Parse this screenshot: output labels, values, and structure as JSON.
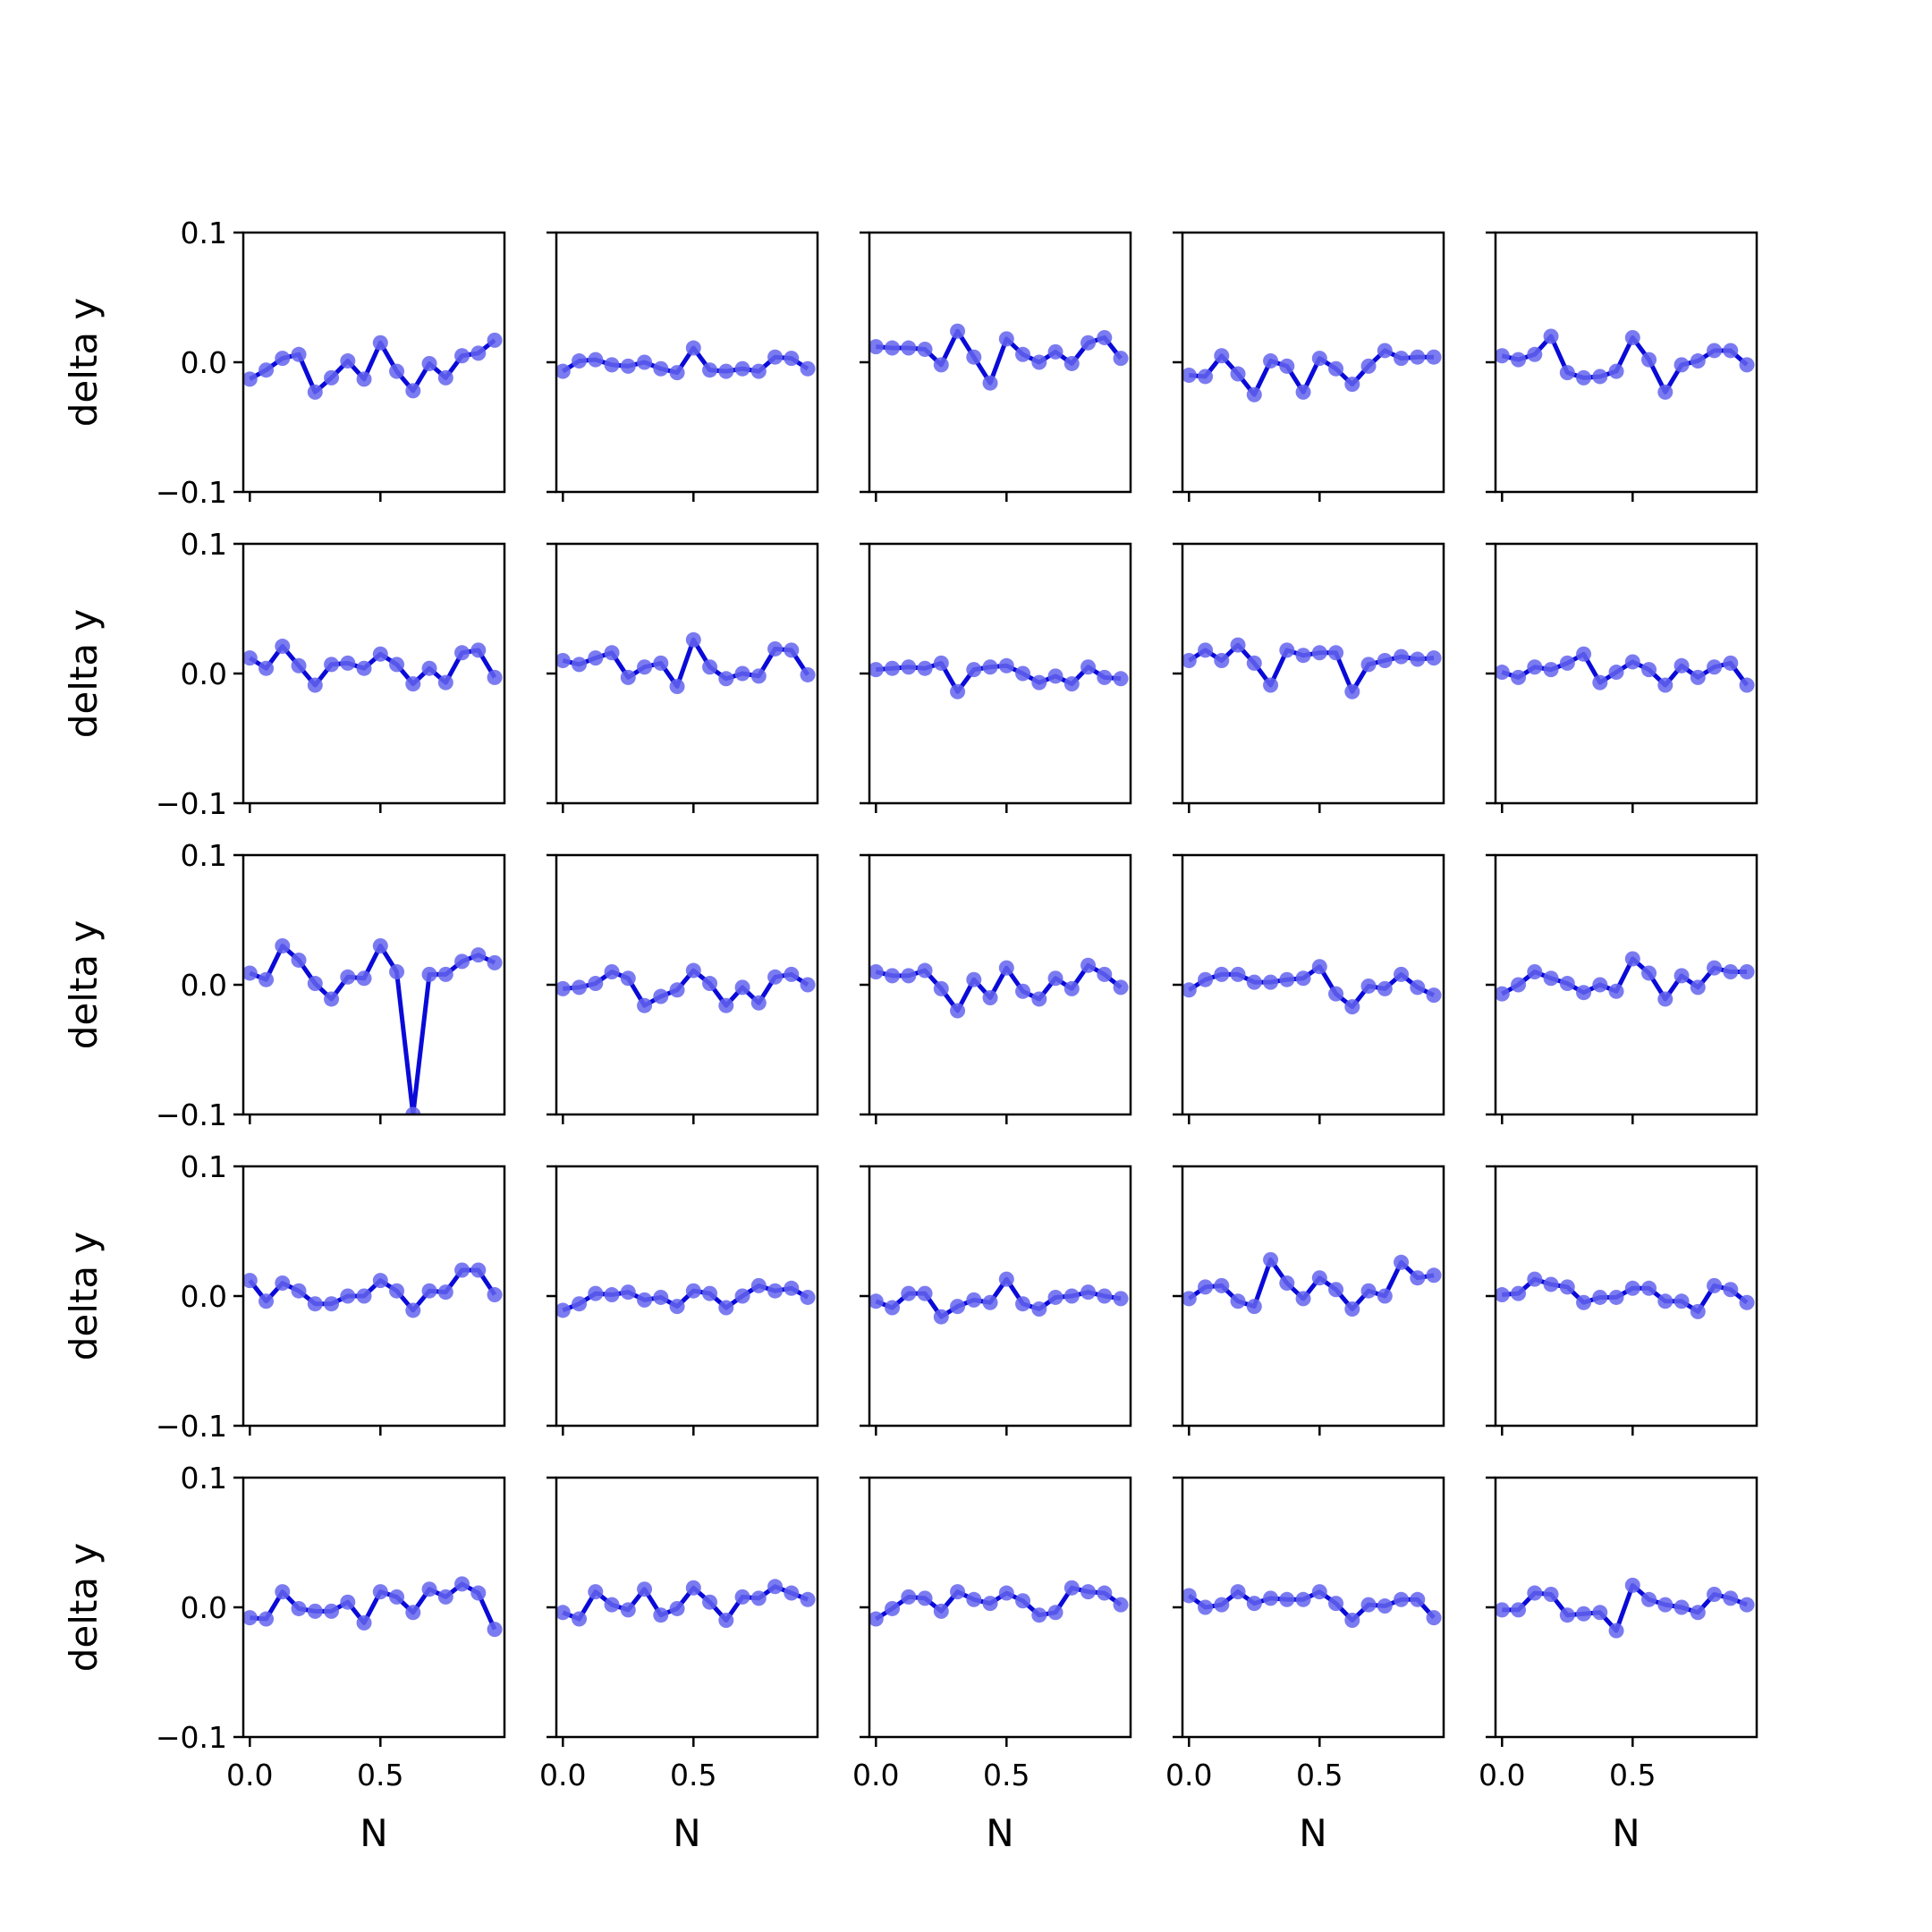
{
  "figure": {
    "rows": 5,
    "cols": 5,
    "line_color": "#0a0ad8",
    "marker_color": "#6464ee",
    "xlabel": "N",
    "ylabel": "delta y"
  },
  "chart_data": {
    "type": "line",
    "layout": "5x5 grid of small multiples, shared x and y axes",
    "xlabel": "N",
    "ylabel": "delta y",
    "xlim": [
      -0.025,
      0.975
    ],
    "ylim": [
      -0.1,
      0.1
    ],
    "xticks": [
      0.0,
      0.5
    ],
    "xtick_labels": [
      "0.0",
      "0.5"
    ],
    "yticks": [
      -0.1,
      0.0,
      0.1
    ],
    "ytick_labels": [
      "−0.1",
      "0.0",
      "0.1"
    ],
    "x": [
      0.0,
      0.0625,
      0.125,
      0.1875,
      0.25,
      0.3125,
      0.375,
      0.4375,
      0.5,
      0.5625,
      0.625,
      0.6875,
      0.75,
      0.8125,
      0.875,
      0.9375
    ],
    "grid": false,
    "legend": false,
    "panels": [
      {
        "row": 0,
        "col": 0,
        "values": [
          -0.013,
          -0.006,
          0.003,
          0.006,
          -0.023,
          -0.012,
          0.001,
          -0.013,
          0.015,
          -0.007,
          -0.022,
          -0.001,
          -0.012,
          0.005,
          0.007,
          0.017
        ]
      },
      {
        "row": 0,
        "col": 1,
        "values": [
          -0.007,
          0.001,
          0.002,
          -0.002,
          -0.003,
          0.0,
          -0.005,
          -0.008,
          0.011,
          -0.006,
          -0.007,
          -0.005,
          -0.007,
          0.004,
          0.003,
          -0.005
        ]
      },
      {
        "row": 0,
        "col": 2,
        "values": [
          0.012,
          0.011,
          0.011,
          0.01,
          -0.002,
          0.024,
          0.004,
          -0.016,
          0.018,
          0.006,
          0.0,
          0.008,
          -0.001,
          0.015,
          0.019,
          0.003
        ]
      },
      {
        "row": 0,
        "col": 3,
        "values": [
          -0.01,
          -0.011,
          0.005,
          -0.009,
          -0.025,
          0.001,
          -0.003,
          -0.023,
          0.003,
          -0.005,
          -0.017,
          -0.003,
          0.009,
          0.003,
          0.004,
          0.004
        ]
      },
      {
        "row": 0,
        "col": 4,
        "values": [
          0.005,
          0.002,
          0.006,
          0.02,
          -0.008,
          -0.012,
          -0.011,
          -0.007,
          0.019,
          0.002,
          -0.023,
          -0.002,
          0.001,
          0.009,
          0.009,
          -0.002
        ]
      },
      {
        "row": 1,
        "col": 0,
        "values": [
          0.012,
          0.004,
          0.021,
          0.006,
          -0.009,
          0.007,
          0.008,
          0.004,
          0.015,
          0.007,
          -0.008,
          0.004,
          -0.007,
          0.016,
          0.018,
          -0.003
        ]
      },
      {
        "row": 1,
        "col": 1,
        "values": [
          0.01,
          0.007,
          0.012,
          0.016,
          -0.003,
          0.005,
          0.008,
          -0.01,
          0.026,
          0.005,
          -0.004,
          0.0,
          -0.002,
          0.019,
          0.018,
          -0.001
        ]
      },
      {
        "row": 1,
        "col": 2,
        "values": [
          0.003,
          0.004,
          0.005,
          0.004,
          0.008,
          -0.014,
          0.003,
          0.005,
          0.006,
          0.0,
          -0.007,
          -0.002,
          -0.008,
          0.005,
          -0.003,
          -0.004
        ]
      },
      {
        "row": 1,
        "col": 3,
        "values": [
          0.01,
          0.018,
          0.01,
          0.022,
          0.008,
          -0.009,
          0.018,
          0.014,
          0.016,
          0.016,
          -0.014,
          0.007,
          0.01,
          0.013,
          0.011,
          0.012
        ]
      },
      {
        "row": 1,
        "col": 4,
        "values": [
          0.001,
          -0.003,
          0.005,
          0.003,
          0.008,
          0.015,
          -0.007,
          0.001,
          0.009,
          0.003,
          -0.009,
          0.006,
          -0.003,
          0.005,
          0.008,
          -0.009
        ]
      },
      {
        "row": 2,
        "col": 0,
        "values": [
          0.009,
          0.004,
          0.03,
          0.019,
          0.001,
          -0.011,
          0.006,
          0.005,
          0.03,
          0.01,
          -0.1,
          0.008,
          0.008,
          0.018,
          0.023,
          0.017
        ]
      },
      {
        "row": 2,
        "col": 1,
        "values": [
          -0.003,
          -0.002,
          0.001,
          0.01,
          0.005,
          -0.016,
          -0.009,
          -0.004,
          0.011,
          0.001,
          -0.016,
          -0.002,
          -0.014,
          0.006,
          0.008,
          0.0
        ]
      },
      {
        "row": 2,
        "col": 2,
        "values": [
          0.01,
          0.007,
          0.007,
          0.011,
          -0.003,
          -0.02,
          0.004,
          -0.01,
          0.013,
          -0.005,
          -0.011,
          0.005,
          -0.003,
          0.015,
          0.008,
          -0.002
        ]
      },
      {
        "row": 2,
        "col": 3,
        "values": [
          -0.004,
          0.004,
          0.008,
          0.008,
          0.002,
          0.002,
          0.004,
          0.005,
          0.014,
          -0.007,
          -0.017,
          -0.001,
          -0.003,
          0.008,
          -0.002,
          -0.008
        ]
      },
      {
        "row": 2,
        "col": 4,
        "values": [
          -0.007,
          0.0,
          0.01,
          0.005,
          0.001,
          -0.006,
          0.0,
          -0.005,
          0.02,
          0.009,
          -0.011,
          0.007,
          -0.002,
          0.013,
          0.01,
          0.01
        ]
      },
      {
        "row": 3,
        "col": 0,
        "values": [
          0.012,
          -0.004,
          0.01,
          0.004,
          -0.006,
          -0.006,
          0.0,
          0.0,
          0.012,
          0.004,
          -0.011,
          0.004,
          0.003,
          0.02,
          0.02,
          0.001
        ]
      },
      {
        "row": 3,
        "col": 1,
        "values": [
          -0.011,
          -0.006,
          0.002,
          0.001,
          0.003,
          -0.003,
          -0.001,
          -0.008,
          0.004,
          0.002,
          -0.009,
          0.0,
          0.008,
          0.004,
          0.006,
          -0.001
        ]
      },
      {
        "row": 3,
        "col": 2,
        "values": [
          -0.004,
          -0.009,
          0.002,
          0.002,
          -0.016,
          -0.008,
          -0.003,
          -0.005,
          0.013,
          -0.006,
          -0.01,
          -0.001,
          0.0,
          0.003,
          0.0,
          -0.002
        ]
      },
      {
        "row": 3,
        "col": 3,
        "values": [
          -0.002,
          0.007,
          0.008,
          -0.004,
          -0.008,
          0.028,
          0.01,
          -0.002,
          0.014,
          0.005,
          -0.01,
          0.004,
          0.0,
          0.026,
          0.014,
          0.016
        ]
      },
      {
        "row": 3,
        "col": 4,
        "values": [
          0.001,
          0.002,
          0.013,
          0.009,
          0.007,
          -0.005,
          -0.001,
          -0.001,
          0.006,
          0.006,
          -0.004,
          -0.004,
          -0.012,
          0.008,
          0.005,
          -0.005
        ]
      },
      {
        "row": 4,
        "col": 0,
        "values": [
          -0.008,
          -0.009,
          0.012,
          -0.001,
          -0.003,
          -0.003,
          0.004,
          -0.012,
          0.012,
          0.008,
          -0.004,
          0.014,
          0.008,
          0.018,
          0.011,
          -0.017
        ]
      },
      {
        "row": 4,
        "col": 1,
        "values": [
          -0.004,
          -0.009,
          0.012,
          0.002,
          -0.002,
          0.014,
          -0.006,
          -0.001,
          0.015,
          0.004,
          -0.01,
          0.008,
          0.007,
          0.016,
          0.011,
          0.006
        ]
      },
      {
        "row": 4,
        "col": 2,
        "values": [
          -0.009,
          -0.001,
          0.008,
          0.007,
          -0.003,
          0.012,
          0.006,
          0.003,
          0.011,
          0.005,
          -0.006,
          -0.004,
          0.015,
          0.012,
          0.011,
          0.002
        ]
      },
      {
        "row": 4,
        "col": 3,
        "values": [
          0.009,
          0.0,
          0.002,
          0.012,
          0.003,
          0.007,
          0.006,
          0.006,
          0.012,
          0.003,
          -0.01,
          0.002,
          0.001,
          0.006,
          0.006,
          -0.008
        ]
      },
      {
        "row": 4,
        "col": 4,
        "values": [
          -0.002,
          -0.002,
          0.011,
          0.01,
          -0.006,
          -0.005,
          -0.004,
          -0.018,
          0.017,
          0.006,
          0.002,
          0.0,
          -0.004,
          0.01,
          0.007,
          0.002
        ]
      }
    ]
  }
}
